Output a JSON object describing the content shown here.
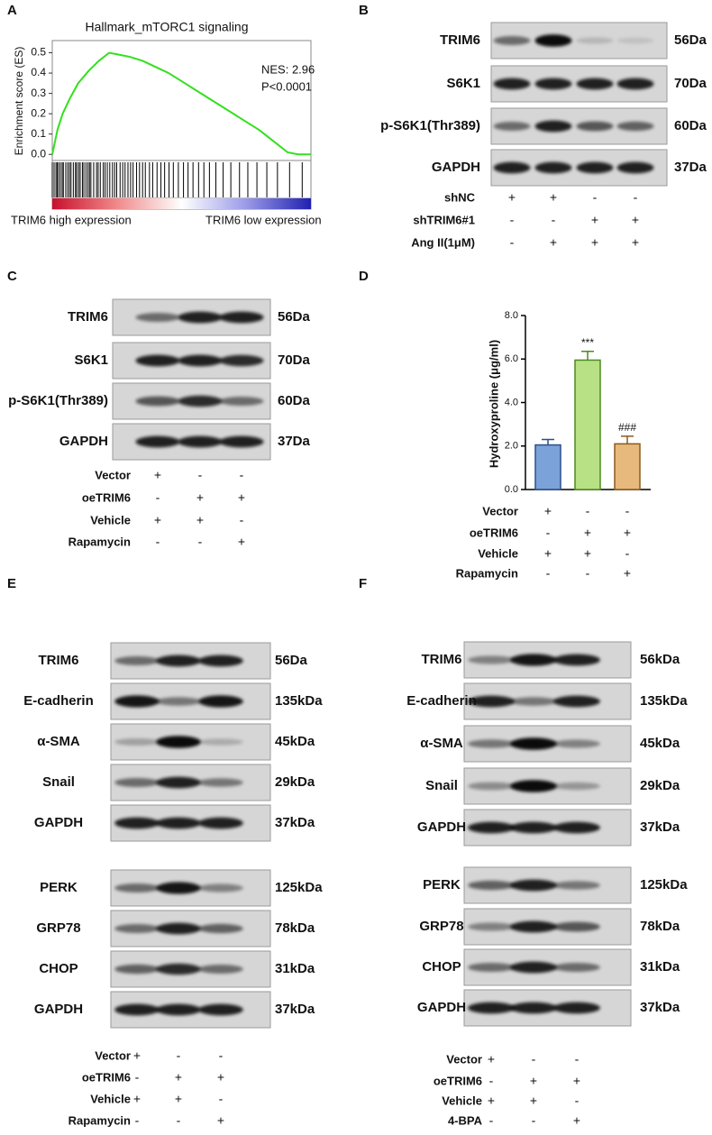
{
  "chart_data": [
    {
      "type": "line",
      "panel_label": "A",
      "title": "Hallmark_mTORC1 signaling",
      "y_label": "Enrichment score (ES)",
      "annotations": [
        "NES: 2.96",
        "P<0.0001"
      ],
      "x_labels": [
        "TRIM6 high expression",
        "TRIM6 low expression"
      ],
      "x": [
        0,
        2,
        4,
        7,
        10,
        14,
        18,
        22,
        26,
        30,
        35,
        40,
        45,
        50,
        55,
        60,
        65,
        70,
        75,
        80,
        85,
        88,
        91,
        95,
        100
      ],
      "series": [
        {
          "color": "#33e01e",
          "values": [
            0,
            0.12,
            0.2,
            0.28,
            0.35,
            0.41,
            0.46,
            0.5,
            0.49,
            0.48,
            0.46,
            0.43,
            0.4,
            0.36,
            0.32,
            0.28,
            0.24,
            0.2,
            0.16,
            0.12,
            0.07,
            0.04,
            0.01,
            0.0,
            0.0
          ]
        }
      ],
      "xlim": [
        0,
        100
      ],
      "ylim": [
        -0.03,
        0.56
      ],
      "yticks": [
        {
          "value": 0,
          "label": "0.0"
        },
        0.1,
        0.2,
        0.3,
        0.4,
        0.5
      ]
    },
    {
      "type": "bar",
      "panel_label": "D",
      "y_label": "Hydroxyproline (μg/ml)",
      "values": [
        2.05,
        5.95,
        2.1
      ],
      "errors": [
        0.25,
        0.4,
        0.35
      ],
      "significance": [
        null,
        "***",
        "###"
      ],
      "colors": [
        "#7ba3d9",
        "#b8e186",
        "#e7b97c"
      ],
      "edge_colors": [
        "#2b4f8a",
        "#4f8a1e",
        "#8a5a1e"
      ],
      "ylim": [
        0,
        8
      ],
      "yticks": [
        {
          "value": 0,
          "label": "0.0"
        },
        {
          "value": 2,
          "label": "2.0"
        },
        {
          "value": 4,
          "label": "4.0"
        },
        {
          "value": 6,
          "label": "6.0"
        },
        {
          "value": 8,
          "label": "8.0"
        }
      ],
      "conditions": [
        {
          "name": "Vector",
          "signs": [
            "+",
            "-",
            "-"
          ]
        },
        {
          "name": "oeTRIM6",
          "signs": [
            "-",
            "+",
            "+"
          ]
        },
        {
          "name": "Vehicle",
          "signs": [
            "+",
            "+",
            "-"
          ]
        },
        {
          "name": "Rapamycin",
          "signs": [
            "-",
            "-",
            "+"
          ]
        }
      ]
    }
  ],
  "blots": [
    {
      "panel_label": "B",
      "rows": [
        {
          "protein": "TRIM6",
          "size": "56Da"
        },
        {
          "protein": "S6K1",
          "size": "70Da"
        },
        {
          "protein": "p-S6K1(Thr389)",
          "size": "60Da"
        },
        {
          "protein": "GAPDH",
          "size": "37Da"
        }
      ],
      "conditions": [
        {
          "name": "shNC",
          "signs": [
            "+",
            "+",
            "-",
            "-"
          ]
        },
        {
          "name": "shTRIM6#1",
          "signs": [
            "-",
            "-",
            "+",
            "+"
          ]
        },
        {
          "name": "Ang II(1μM)",
          "signs": [
            "-",
            "+",
            "+",
            "+"
          ]
        }
      ]
    },
    {
      "panel_label": "C",
      "rows": [
        {
          "protein": "TRIM6",
          "size": "56Da"
        },
        {
          "protein": "S6K1",
          "size": "70Da"
        },
        {
          "protein": "p-S6K1(Thr389)",
          "size": "60Da"
        },
        {
          "protein": "GAPDH",
          "size": "37Da"
        }
      ],
      "conditions": [
        {
          "name": "Vector",
          "signs": [
            "+",
            "-",
            "-"
          ]
        },
        {
          "name": "oeTRIM6",
          "signs": [
            "-",
            "+",
            "+"
          ]
        },
        {
          "name": "Vehicle",
          "signs": [
            "+",
            "+",
            "-"
          ]
        },
        {
          "name": "Rapamycin",
          "signs": [
            "-",
            "-",
            "+"
          ]
        }
      ]
    },
    {
      "panel_label": "E",
      "rows": [
        {
          "protein": "TRIM6",
          "size": "56Da"
        },
        {
          "protein": "E-cadherin",
          "size": "135kDa"
        },
        {
          "protein": "α-SMA",
          "size": "45kDa"
        },
        {
          "protein": "Snail",
          "size": "29kDa"
        },
        {
          "protein": "GAPDH",
          "size": "37kDa"
        },
        {
          "protein": "PERK",
          "size": "125kDa"
        },
        {
          "protein": "GRP78",
          "size": "78kDa"
        },
        {
          "protein": "CHOP",
          "size": "31kDa"
        },
        {
          "protein": "GAPDH",
          "size": "37kDa"
        }
      ],
      "conditions": [
        {
          "name": "Vector",
          "signs": [
            "+",
            "-",
            "-"
          ]
        },
        {
          "name": "oeTRIM6",
          "signs": [
            "-",
            "+",
            "+"
          ]
        },
        {
          "name": "Vehicle",
          "signs": [
            "+",
            "+",
            "-"
          ]
        },
        {
          "name": "Rapamycin",
          "signs": [
            "-",
            "-",
            "+"
          ]
        }
      ]
    },
    {
      "panel_label": "F",
      "rows": [
        {
          "protein": "TRIM6",
          "size": "56kDa"
        },
        {
          "protein": "E-cadherin",
          "size": "135kDa"
        },
        {
          "protein": "α-SMA",
          "size": "45kDa"
        },
        {
          "protein": "Snail",
          "size": "29kDa"
        },
        {
          "protein": "GAPDH",
          "size": "37kDa"
        },
        {
          "protein": "PERK",
          "size": "125kDa"
        },
        {
          "protein": "GRP78",
          "size": "78kDa"
        },
        {
          "protein": "CHOP",
          "size": "31kDa"
        },
        {
          "protein": "GAPDH",
          "size": "37kDa"
        }
      ],
      "conditions": [
        {
          "name": "Vector",
          "signs": [
            "+",
            "-",
            "-"
          ]
        },
        {
          "name": "oeTRIM6",
          "signs": [
            "-",
            "+",
            "+"
          ]
        },
        {
          "name": "Vehicle",
          "signs": [
            "+",
            "+",
            "-"
          ]
        },
        {
          "name": "4-BPA",
          "signs": [
            "-",
            "-",
            "+"
          ]
        }
      ]
    }
  ]
}
